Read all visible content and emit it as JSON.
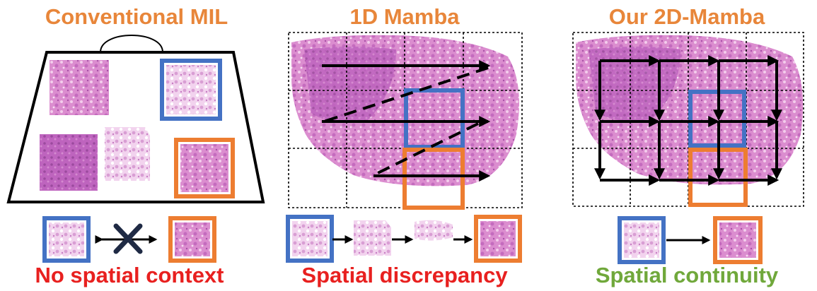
{
  "panels": [
    {
      "title": "Conventional MIL",
      "caption": "No spatial context"
    },
    {
      "title": "1D Mamba",
      "caption": "Spatial discrepancy"
    },
    {
      "title": "Our 2D-Mamba",
      "caption": "Spatial continuity"
    }
  ],
  "colors": {
    "title": "#E8863A",
    "caption_bad": "#E8201F",
    "caption_good": "#70A83B",
    "box_blue": "#4472C4",
    "box_orange": "#ED7D31",
    "tissue": "#D77FC8",
    "tissue_dark": "#B05AAE",
    "cross": "#1F2A44"
  }
}
